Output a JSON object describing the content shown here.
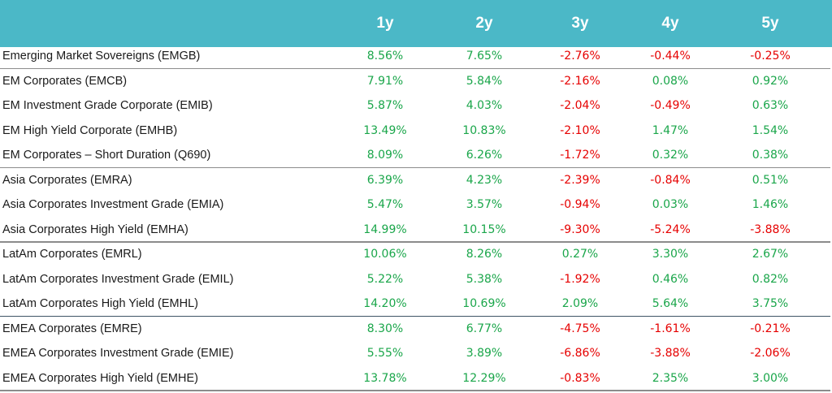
{
  "colors": {
    "header_bg": "#4bb8c7",
    "positive": "#1aa64a",
    "negative": "#e60000",
    "text": "#1a1a1a"
  },
  "chart_data": {
    "type": "table",
    "columns": [
      "1y",
      "2y",
      "3y",
      "4y",
      "5y"
    ],
    "rows": [
      {
        "label": "Emerging Market Sovereigns (EMGB)",
        "values": [
          "8.56%",
          "7.65%",
          "-2.76%",
          "-0.44%",
          "-0.25%"
        ]
      },
      {
        "label": "EM Corporates (EMCB)",
        "values": [
          "7.91%",
          "5.84%",
          "-2.16%",
          "0.08%",
          "0.92%"
        ]
      },
      {
        "label": "EM Investment Grade Corporate (EMIB)",
        "values": [
          "5.87%",
          "4.03%",
          "-2.04%",
          "-0.49%",
          "0.63%"
        ]
      },
      {
        "label": "EM High Yield Corporate (EMHB)",
        "values": [
          "13.49%",
          "10.83%",
          "-2.10%",
          "1.47%",
          "1.54%"
        ]
      },
      {
        "label": "EM Corporates – Short Duration (Q690)",
        "values": [
          "8.09%",
          "6.26%",
          "-1.72%",
          "0.32%",
          "0.38%"
        ]
      },
      {
        "label": "Asia Corporates (EMRA)",
        "values": [
          "6.39%",
          "4.23%",
          "-2.39%",
          "-0.84%",
          "0.51%"
        ]
      },
      {
        "label": "Asia Corporates Investment Grade (EMIA)",
        "values": [
          "5.47%",
          "3.57%",
          "-0.94%",
          "0.03%",
          "1.46%"
        ]
      },
      {
        "label": "Asia Corporates High Yield (EMHA)",
        "values": [
          "14.99%",
          "10.15%",
          "-9.30%",
          "-5.24%",
          "-3.88%"
        ]
      },
      {
        "label": "LatAm Corporates (EMRL)",
        "values": [
          "10.06%",
          "8.26%",
          "0.27%",
          "3.30%",
          "2.67%"
        ]
      },
      {
        "label": "LatAm Corporates Investment Grade (EMIL)",
        "values": [
          "5.22%",
          "5.38%",
          "-1.92%",
          "0.46%",
          "0.82%"
        ]
      },
      {
        "label": "LatAm Corporates High Yield (EMHL)",
        "values": [
          "14.20%",
          "10.69%",
          "2.09%",
          "5.64%",
          "3.75%"
        ]
      },
      {
        "label": "EMEA Corporates (EMRE)",
        "values": [
          "8.30%",
          "6.77%",
          "-4.75%",
          "-1.61%",
          "-0.21%"
        ]
      },
      {
        "label": "EMEA Corporates Investment Grade (EMIE)",
        "values": [
          "5.55%",
          "3.89%",
          "-6.86%",
          "-3.88%",
          "-2.06%"
        ]
      },
      {
        "label": "EMEA Corporates High Yield (EMHE)",
        "values": [
          "13.78%",
          "12.29%",
          "-0.83%",
          "2.35%",
          "3.00%"
        ]
      }
    ]
  }
}
